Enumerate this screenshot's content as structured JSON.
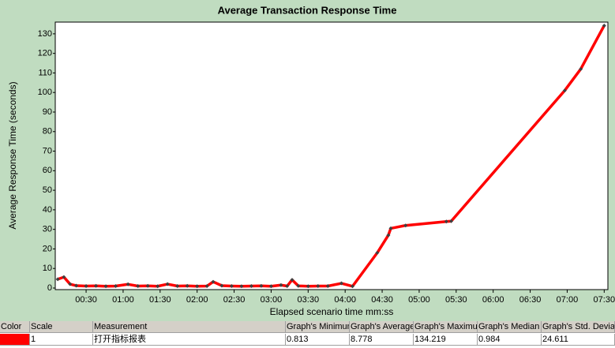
{
  "chart_data": {
    "type": "line",
    "title": "Average Transaction Response Time",
    "x_label": "Elapsed scenario time mm:ss",
    "y_label": "Average Response Time (seconds)",
    "x": [
      7,
      12,
      17,
      22,
      30,
      38,
      46,
      54,
      64,
      72,
      80,
      88,
      96,
      104,
      112,
      120,
      128,
      133,
      140,
      148,
      156,
      164,
      172,
      180,
      188,
      193,
      197,
      202,
      210,
      218,
      226,
      237,
      246,
      266,
      275,
      277,
      289,
      322,
      326,
      418,
      431,
      450
    ],
    "series": [
      {
        "color": "#ff0000",
        "values": [
          4.5,
          5.6,
          2.0,
          1.2,
          1.0,
          1.1,
          0.9,
          1.0,
          1.9,
          1.0,
          1.1,
          0.9,
          2.0,
          1.0,
          1.1,
          0.9,
          1.0,
          3.2,
          1.2,
          1.0,
          0.9,
          1.0,
          1.1,
          0.9,
          1.5,
          1.0,
          4.2,
          1.1,
          0.9,
          1.0,
          1.0,
          2.4,
          0.9,
          18,
          27,
          30.5,
          32,
          34,
          34.2,
          101,
          112,
          134.2
        ]
      }
    ],
    "xlim": [
      5,
      453
    ],
    "ylim": [
      0,
      136
    ],
    "xticks": [
      {
        "value": 30,
        "label": "00:30"
      },
      {
        "value": 60,
        "label": "01:00"
      },
      {
        "value": 90,
        "label": "01:30"
      },
      {
        "value": 120,
        "label": "02:00"
      },
      {
        "value": 150,
        "label": "02:30"
      },
      {
        "value": 180,
        "label": "03:00"
      },
      {
        "value": 210,
        "label": "03:30"
      },
      {
        "value": 240,
        "label": "04:00"
      },
      {
        "value": 270,
        "label": "04:30"
      },
      {
        "value": 300,
        "label": "05:00"
      },
      {
        "value": 330,
        "label": "05:30"
      },
      {
        "value": 360,
        "label": "06:00"
      },
      {
        "value": 390,
        "label": "06:30"
      },
      {
        "value": 420,
        "label": "07:00"
      },
      {
        "value": 450,
        "label": "07:30"
      }
    ],
    "yticks": [
      0,
      10,
      20,
      30,
      40,
      50,
      60,
      70,
      80,
      90,
      100,
      110,
      120,
      130
    ],
    "grid": false
  },
  "legend_table": {
    "headers": [
      "Color",
      "Scale",
      "Measurement",
      "Graph's Minimum",
      "Graph's Average",
      "Graph's Maximum",
      "Graph's Median",
      "Graph's Std. Deviation"
    ],
    "rows": [
      {
        "color": "#ff0000",
        "cells": [
          "1",
          "打开指标报表",
          "0.813",
          "8.778",
          "134.219",
          "0.984",
          "24.611"
        ]
      }
    ]
  }
}
